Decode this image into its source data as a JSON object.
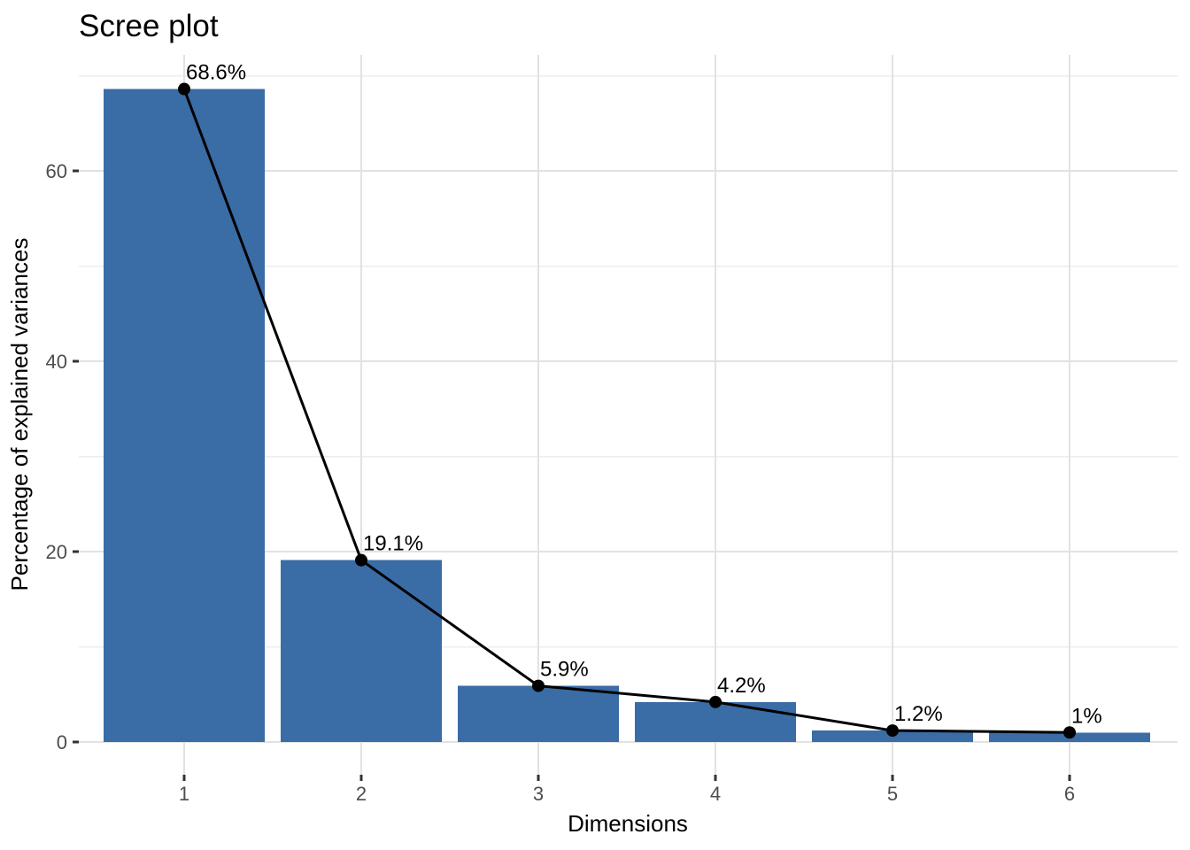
{
  "chart_data": {
    "type": "bar",
    "overlay": "line+points",
    "title": "Scree plot",
    "xlabel": "Dimensions",
    "ylabel": "Percentage of explained variances",
    "categories": [
      "1",
      "2",
      "3",
      "4",
      "5",
      "6"
    ],
    "values": [
      68.6,
      19.1,
      5.9,
      4.2,
      1.2,
      1
    ],
    "point_labels": [
      "68.6%",
      "19.1%",
      "5.9%",
      "4.2%",
      "1.2%",
      "1%"
    ],
    "yticks": [
      0,
      20,
      40,
      60
    ],
    "yticks_minor": [
      10,
      30,
      50,
      70
    ],
    "ylim": [
      -3.4,
      72.2
    ],
    "grid": "major+minor horizontal, major vertical",
    "legend": "none",
    "colors": {
      "bar_fill": "#3A6CA6",
      "line": "#000000",
      "point": "#000000",
      "grid_major": "#E2E2E2",
      "grid_minor": "#EDEDED",
      "tick_mark": "#333333",
      "tick_text": "#4D4D4D",
      "text": "#000000",
      "background": "#FFFFFF"
    }
  }
}
